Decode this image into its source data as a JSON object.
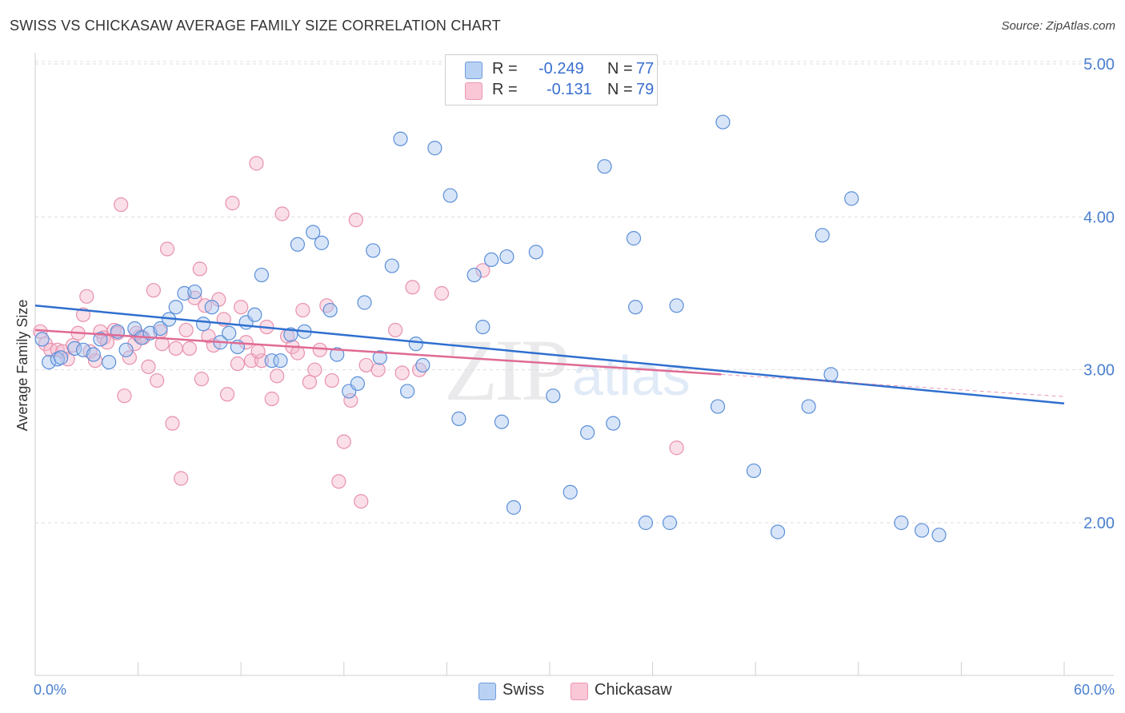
{
  "header": {
    "title": "SWISS VS CHICKASAW AVERAGE FAMILY SIZE CORRELATION CHART",
    "source": "Source: ZipAtlas.com"
  },
  "watermark": {
    "part1": "ZIP",
    "part2": "atlas"
  },
  "legend": {
    "rows": [
      {
        "r_label": "R =",
        "r_value": "-0.249",
        "n_label": "N =",
        "n_value": "77",
        "color": "#a9c6ef"
      },
      {
        "r_label": "R =",
        "r_value": "-0.131",
        "n_label": "N =",
        "n_value": "79",
        "color": "#f5b8cb"
      }
    ]
  },
  "bottom_legend": {
    "swiss": "Swiss",
    "chickasaw": "Chickasaw"
  },
  "colors": {
    "swiss_fill": "#a9c6ef",
    "swiss_stroke": "#5b8fd8",
    "swiss_line": "#2f6fcf",
    "chickasaw_fill": "#f5b8cb",
    "chickasaw_stroke": "#e891ae",
    "chickasaw_line": "#e06a94",
    "axis_label": "#4a7fd0",
    "grid": "#dddddd"
  },
  "chart_data": {
    "type": "scatter",
    "title": "SWISS VS CHICKASAW AVERAGE FAMILY SIZE CORRELATION CHART",
    "xlabel": "",
    "ylabel": "Average Family Size",
    "xlim": [
      0,
      60
    ],
    "ylim": [
      1.0,
      5.1
    ],
    "x_tick_labels": [
      "0.0%",
      "60.0%"
    ],
    "y_ticks": [
      2.0,
      3.0,
      4.0,
      5.0
    ],
    "y_tick_labels": [
      "2.00",
      "3.00",
      "4.00",
      "5.00"
    ],
    "grid": true,
    "legend_position": "top-center",
    "series": [
      {
        "name": "Swiss",
        "R": -0.249,
        "N": 77,
        "trend": {
          "x": [
            0,
            60
          ],
          "y": [
            3.42,
            2.78
          ]
        },
        "points": [
          [
            0.4,
            3.2
          ],
          [
            0.8,
            3.05
          ],
          [
            1.3,
            3.07
          ],
          [
            1.5,
            3.08
          ],
          [
            2.3,
            3.14
          ],
          [
            2.8,
            3.13
          ],
          [
            3.4,
            3.1
          ],
          [
            3.8,
            3.2
          ],
          [
            4.3,
            3.05
          ],
          [
            4.8,
            3.25
          ],
          [
            5.3,
            3.13
          ],
          [
            5.8,
            3.27
          ],
          [
            6.2,
            3.21
          ],
          [
            6.7,
            3.24
          ],
          [
            7.3,
            3.27
          ],
          [
            7.8,
            3.33
          ],
          [
            8.2,
            3.41
          ],
          [
            8.7,
            3.5
          ],
          [
            9.3,
            3.51
          ],
          [
            9.8,
            3.3
          ],
          [
            10.3,
            3.41
          ],
          [
            10.8,
            3.18
          ],
          [
            11.3,
            3.24
          ],
          [
            11.8,
            3.15
          ],
          [
            12.3,
            3.31
          ],
          [
            12.8,
            3.36
          ],
          [
            13.2,
            3.62
          ],
          [
            13.8,
            3.06
          ],
          [
            14.3,
            3.06
          ],
          [
            14.9,
            3.23
          ],
          [
            15.3,
            3.82
          ],
          [
            15.7,
            3.25
          ],
          [
            16.2,
            3.9
          ],
          [
            16.7,
            3.83
          ],
          [
            17.2,
            3.39
          ],
          [
            17.6,
            3.1
          ],
          [
            18.3,
            2.86
          ],
          [
            18.8,
            2.91
          ],
          [
            19.2,
            3.44
          ],
          [
            19.7,
            3.78
          ],
          [
            20.1,
            3.08
          ],
          [
            20.8,
            3.68
          ],
          [
            21.3,
            4.51
          ],
          [
            21.7,
            2.86
          ],
          [
            22.2,
            3.17
          ],
          [
            22.6,
            3.03
          ],
          [
            23.3,
            4.45
          ],
          [
            24.2,
            4.14
          ],
          [
            24.7,
            2.68
          ],
          [
            25.6,
            3.62
          ],
          [
            26.1,
            3.28
          ],
          [
            26.6,
            3.72
          ],
          [
            27.2,
            2.66
          ],
          [
            27.5,
            3.74
          ],
          [
            27.9,
            2.1
          ],
          [
            29.2,
            3.77
          ],
          [
            30.2,
            2.83
          ],
          [
            31.2,
            2.2
          ],
          [
            32.2,
            2.59
          ],
          [
            33.2,
            4.33
          ],
          [
            33.7,
            2.65
          ],
          [
            34.9,
            3.86
          ],
          [
            35.0,
            3.41
          ],
          [
            35.6,
            2.0
          ],
          [
            37.0,
            2.0
          ],
          [
            37.4,
            3.42
          ],
          [
            39.8,
            2.76
          ],
          [
            40.1,
            4.62
          ],
          [
            41.9,
            2.34
          ],
          [
            43.3,
            1.94
          ],
          [
            45.1,
            2.76
          ],
          [
            45.9,
            3.88
          ],
          [
            46.4,
            2.97
          ],
          [
            47.6,
            4.12
          ],
          [
            50.5,
            2.0
          ],
          [
            51.7,
            1.95
          ],
          [
            52.7,
            1.92
          ]
        ]
      },
      {
        "name": "Chickasaw",
        "R": -0.131,
        "N": 79,
        "trend": {
          "x": [
            0,
            40
          ],
          "y": [
            3.26,
            2.97
          ]
        },
        "points": [
          [
            0.3,
            3.25
          ],
          [
            0.6,
            3.17
          ],
          [
            0.9,
            3.13
          ],
          [
            1.3,
            3.13
          ],
          [
            1.6,
            3.12
          ],
          [
            1.9,
            3.07
          ],
          [
            2.2,
            3.16
          ],
          [
            2.5,
            3.24
          ],
          [
            2.8,
            3.36
          ],
          [
            3.0,
            3.48
          ],
          [
            3.2,
            3.12
          ],
          [
            3.5,
            3.06
          ],
          [
            3.8,
            3.25
          ],
          [
            4.0,
            3.21
          ],
          [
            4.2,
            3.18
          ],
          [
            4.6,
            3.26
          ],
          [
            4.8,
            3.24
          ],
          [
            5.0,
            4.08
          ],
          [
            5.2,
            2.83
          ],
          [
            5.5,
            3.08
          ],
          [
            5.8,
            3.17
          ],
          [
            6.1,
            3.22
          ],
          [
            6.3,
            3.21
          ],
          [
            6.6,
            3.02
          ],
          [
            6.9,
            3.52
          ],
          [
            7.1,
            2.93
          ],
          [
            7.4,
            3.17
          ],
          [
            7.7,
            3.79
          ],
          [
            8.0,
            2.65
          ],
          [
            8.2,
            3.14
          ],
          [
            8.5,
            2.29
          ],
          [
            8.8,
            3.26
          ],
          [
            9.0,
            3.14
          ],
          [
            9.3,
            3.47
          ],
          [
            9.6,
            3.66
          ],
          [
            9.9,
            3.42
          ],
          [
            10.1,
            3.22
          ],
          [
            10.4,
            3.16
          ],
          [
            10.7,
            3.46
          ],
          [
            11.0,
            3.33
          ],
          [
            11.2,
            2.84
          ],
          [
            11.5,
            4.09
          ],
          [
            11.8,
            3.04
          ],
          [
            12.0,
            3.41
          ],
          [
            12.3,
            3.18
          ],
          [
            12.6,
            3.06
          ],
          [
            12.9,
            4.35
          ],
          [
            13.2,
            3.06
          ],
          [
            13.5,
            3.28
          ],
          [
            13.8,
            2.81
          ],
          [
            14.1,
            2.96
          ],
          [
            14.4,
            4.02
          ],
          [
            14.7,
            3.22
          ],
          [
            15.0,
            3.15
          ],
          [
            15.3,
            3.11
          ],
          [
            15.6,
            3.39
          ],
          [
            16.0,
            2.92
          ],
          [
            16.3,
            3.0
          ],
          [
            16.6,
            3.13
          ],
          [
            17.0,
            3.42
          ],
          [
            17.3,
            2.93
          ],
          [
            17.7,
            2.27
          ],
          [
            18.0,
            2.53
          ],
          [
            18.4,
            2.8
          ],
          [
            18.7,
            3.98
          ],
          [
            19.0,
            2.14
          ],
          [
            19.3,
            3.03
          ],
          [
            20.0,
            3.0
          ],
          [
            21.0,
            3.26
          ],
          [
            21.4,
            2.98
          ],
          [
            22.0,
            3.54
          ],
          [
            22.4,
            3.0
          ],
          [
            23.7,
            3.5
          ],
          [
            26.1,
            3.65
          ],
          [
            37.4,
            2.49
          ],
          [
            5.9,
            3.24
          ],
          [
            9.7,
            2.94
          ],
          [
            13.0,
            3.12
          ],
          [
            7.3,
            3.25
          ]
        ]
      }
    ]
  }
}
